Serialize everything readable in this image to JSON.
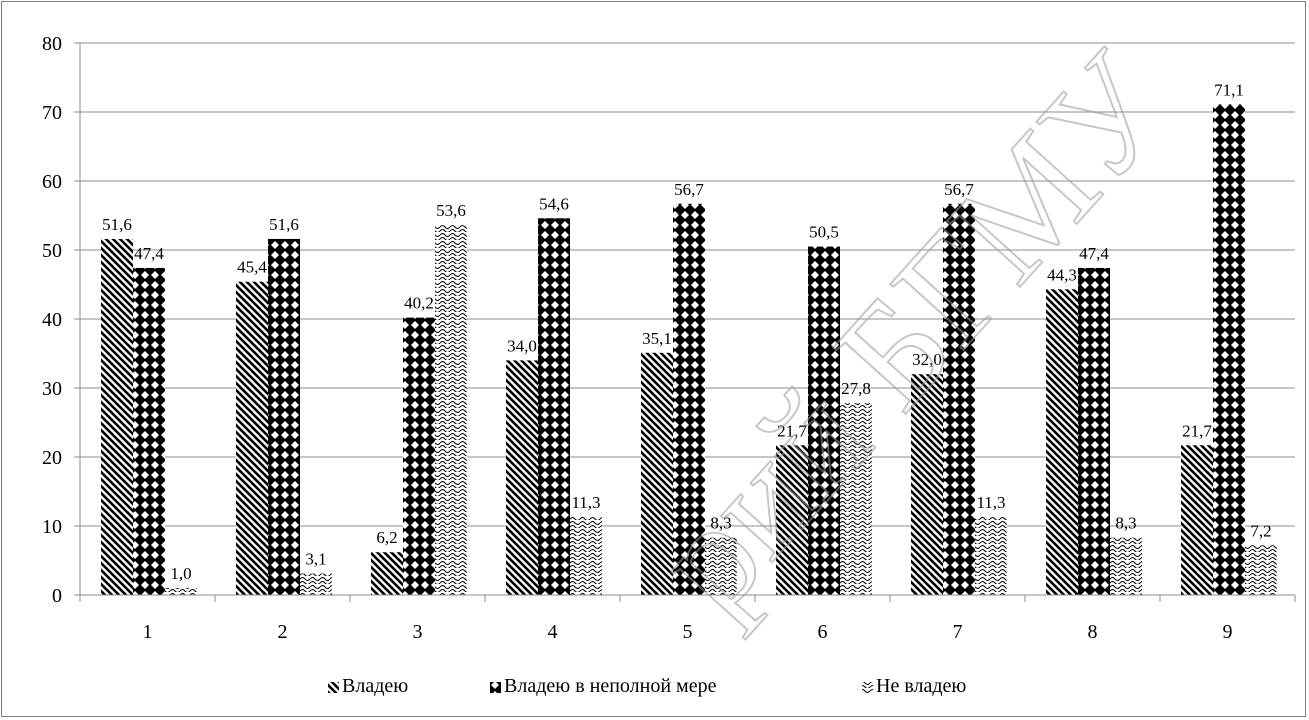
{
  "chart_data": {
    "type": "bar",
    "categories": [
      "1",
      "2",
      "3",
      "4",
      "5",
      "6",
      "7",
      "8",
      "9"
    ],
    "series": [
      {
        "name": "Владею",
        "values": [
          51.6,
          45.4,
          6.2,
          34.0,
          35.1,
          21.7,
          32.0,
          44.3,
          21.7
        ],
        "labels": [
          "51,6",
          "45,4",
          "6,2",
          "34,0",
          "35,1",
          "21,7",
          "32,0",
          "44,3",
          "21,7"
        ],
        "pattern": "diagonal-hatch"
      },
      {
        "name": "Владею в неполной мере",
        "values": [
          47.4,
          51.6,
          40.2,
          54.6,
          56.7,
          50.5,
          56.7,
          47.4,
          71.1
        ],
        "labels": [
          "47,4",
          "51,6",
          "40,2",
          "54,6",
          "56,7",
          "50,5",
          "56,7",
          "47,4",
          "71,1"
        ],
        "pattern": "diamond-checker"
      },
      {
        "name": "Не владею",
        "values": [
          1.0,
          3.1,
          53.6,
          11.3,
          8.3,
          27.8,
          11.3,
          8.3,
          7.2
        ],
        "labels": [
          "1,0",
          "3,1",
          "53,6",
          "11,3",
          "8,3",
          "27,8",
          "11,3",
          "8,3",
          "7,2"
        ],
        "pattern": "wave-weave"
      }
    ],
    "yticks": [
      "0",
      "10",
      "20",
      "30",
      "40",
      "50",
      "60",
      "70",
      "80"
    ],
    "ylim": [
      0,
      80
    ],
    "grid": true,
    "legend_position": "bottom",
    "watermark": "рий БГМУ"
  }
}
